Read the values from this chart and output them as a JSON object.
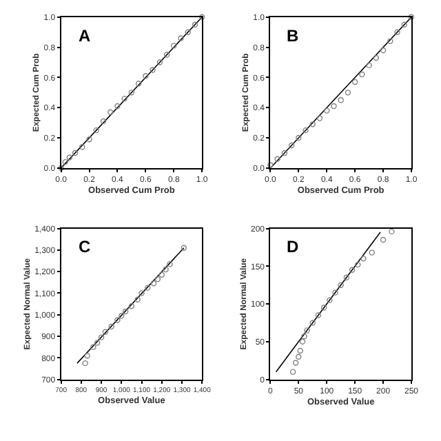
{
  "chart_data": [
    {
      "type": "scatter",
      "xlabel": "Observed Cum Prob",
      "ylabel": "Expected Cum Prob",
      "annotations": [
        "A"
      ],
      "xlim": [
        0,
        1
      ],
      "ylim": [
        0,
        1
      ],
      "xticks": [
        {
          "value": 0,
          "label": "0.0"
        },
        0.2,
        0.4,
        0.6,
        0.8,
        {
          "value": 1,
          "label": "1.0"
        }
      ],
      "yticks": [
        {
          "value": 0,
          "label": "0.0"
        },
        0.2,
        0.4,
        0.6,
        0.8,
        {
          "value": 1,
          "label": "1.0"
        }
      ],
      "series": [
        {
          "type": "line",
          "color": "#000000",
          "x": [
            0,
            1
          ],
          "values": [
            0,
            1
          ]
        },
        {
          "marker": "circle",
          "color": "#808080",
          "x": [
            0,
            0.03,
            0.06,
            0.1,
            0.15,
            0.2,
            0.25,
            0.3,
            0.35,
            0.4,
            0.45,
            0.5,
            0.55,
            0.6,
            0.65,
            0.7,
            0.75,
            0.8,
            0.85,
            0.9,
            0.95,
            1
          ],
          "values": [
            0,
            0.04,
            0.07,
            0.1,
            0.14,
            0.19,
            0.25,
            0.31,
            0.37,
            0.41,
            0.46,
            0.5,
            0.56,
            0.61,
            0.65,
            0.7,
            0.75,
            0.81,
            0.86,
            0.9,
            0.95,
            1
          ]
        }
      ]
    },
    {
      "type": "scatter",
      "xlabel": "Observed Cum Prob",
      "ylabel": "Expected Cum Prob",
      "annotations": [
        "B"
      ],
      "xlim": [
        0,
        1
      ],
      "ylim": [
        0,
        1
      ],
      "xticks": [
        {
          "value": 0,
          "label": "0.0"
        },
        0.2,
        0.4,
        0.6,
        0.8,
        {
          "value": 1,
          "label": "1.0"
        }
      ],
      "yticks": [
        {
          "value": 0,
          "label": "0.0"
        },
        0.2,
        0.4,
        0.6,
        0.8,
        {
          "value": 1,
          "label": "1.0"
        }
      ],
      "series": [
        {
          "type": "line",
          "color": "#000000",
          "x": [
            0,
            1
          ],
          "values": [
            0,
            1
          ]
        },
        {
          "marker": "circle",
          "color": "#808080",
          "x": [
            0,
            0.05,
            0.1,
            0.15,
            0.2,
            0.25,
            0.3,
            0.35,
            0.4,
            0.45,
            0.5,
            0.55,
            0.6,
            0.65,
            0.7,
            0.75,
            0.8,
            0.85,
            0.9,
            0.95,
            1
          ],
          "values": [
            0.02,
            0.06,
            0.1,
            0.15,
            0.2,
            0.25,
            0.29,
            0.33,
            0.38,
            0.41,
            0.45,
            0.5,
            0.57,
            0.62,
            0.68,
            0.73,
            0.78,
            0.84,
            0.9,
            0.95,
            1
          ]
        }
      ]
    },
    {
      "type": "scatter",
      "xlabel": "Observed Value",
      "ylabel": "Expected Normal Value",
      "annotations": [
        "C"
      ],
      "xlim": [
        700,
        1400
      ],
      "ylim": [
        700,
        1400
      ],
      "xticks": [
        700,
        800,
        900,
        {
          "value": 1000,
          "label": "1,000"
        },
        {
          "value": 1100,
          "label": "1,100"
        },
        {
          "value": 1200,
          "label": "1,200"
        },
        {
          "value": 1300,
          "label": "1,300"
        },
        {
          "value": 1400,
          "label": "1,400"
        }
      ],
      "yticks": [
        700,
        800,
        900,
        {
          "value": 1000,
          "label": "1,000"
        },
        {
          "value": 1100,
          "label": "1,100"
        },
        {
          "value": 1200,
          "label": "1,200"
        },
        {
          "value": 1300,
          "label": "1,300"
        },
        {
          "value": 1400,
          "label": "1,400"
        }
      ],
      "series": [
        {
          "type": "line",
          "color": "#000000",
          "x": [
            780,
            1310
          ],
          "values": [
            775,
            1310
          ]
        },
        {
          "marker": "circle",
          "color": "#808080",
          "x": [
            820,
            830,
            860,
            880,
            900,
            920,
            950,
            980,
            1000,
            1020,
            1050,
            1080,
            1100,
            1130,
            1160,
            1180,
            1200,
            1220,
            1240,
            1310
          ],
          "values": [
            775,
            810,
            850,
            870,
            895,
            920,
            945,
            975,
            995,
            1015,
            1040,
            1070,
            1100,
            1125,
            1145,
            1165,
            1185,
            1210,
            1235,
            1310
          ]
        }
      ]
    },
    {
      "type": "scatter",
      "xlabel": "Observed Value",
      "ylabel": "Expected Normal Value",
      "annotations": [
        "D"
      ],
      "xlim": [
        0,
        250
      ],
      "ylim": [
        0,
        200
      ],
      "xticks": [
        0,
        50,
        100,
        150,
        200,
        250
      ],
      "yticks": [
        0,
        50,
        100,
        150,
        200
      ],
      "series": [
        {
          "type": "line",
          "color": "#000000",
          "x": [
            10,
            195
          ],
          "values": [
            10,
            195
          ]
        },
        {
          "marker": "circle",
          "color": "#808080",
          "x": [
            40,
            45,
            50,
            53,
            57,
            60,
            65,
            75,
            85,
            95,
            105,
            115,
            125,
            135,
            145,
            155,
            165,
            180,
            200,
            215
          ],
          "values": [
            10,
            22,
            30,
            38,
            50,
            57,
            65,
            75,
            85,
            95,
            105,
            115,
            125,
            135,
            145,
            152,
            160,
            168,
            185,
            196
          ]
        }
      ]
    }
  ]
}
